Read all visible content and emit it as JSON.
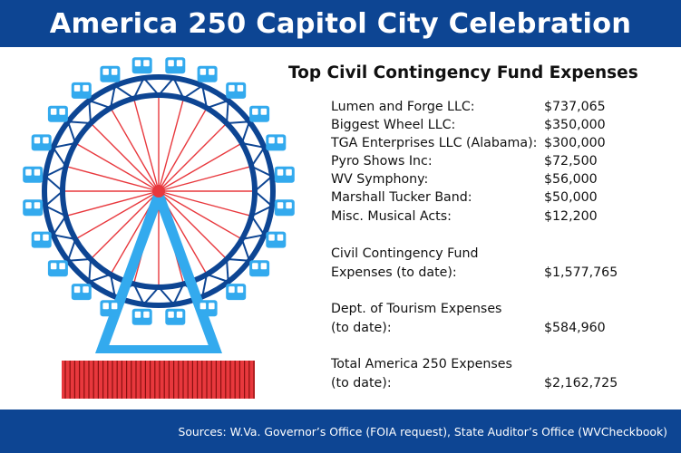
{
  "header": {
    "title": "America 250 Capitol City Celebration"
  },
  "table": {
    "heading": "Top Civil Contingency Fund Expenses",
    "items": [
      {
        "label": "Lumen and Forge LLC:",
        "amount": "$737,065"
      },
      {
        "label": "Biggest Wheel LLC:",
        "amount": "$350,000"
      },
      {
        "label": "TGA Enterprises LLC (Alabama):",
        "amount": "$300,000"
      },
      {
        "label": "Pyro Shows Inc:",
        "amount": "$72,500"
      },
      {
        "label": "WV Symphony:",
        "amount": "$56,000"
      },
      {
        "label": "Marshall Tucker Band:",
        "amount": "$50,000"
      },
      {
        "label": "Misc. Musical Acts:",
        "amount": "$12,200"
      }
    ],
    "totals": [
      {
        "line1": "Civil Contingency Fund",
        "line2": "Expenses (to date):",
        "amount": "$1,577,765"
      },
      {
        "line1": "Dept. of Tourism Expenses",
        "line2": "(to date):",
        "amount": "$584,960"
      },
      {
        "line1": "Total America 250 Expenses",
        "line2": "(to date):",
        "amount": "$2,162,725"
      }
    ]
  },
  "footer": {
    "sources": "Sources: W.Va. Governor’s Office (FOIA request), State Auditor’s Office (WVCheckbook)"
  },
  "colors": {
    "banner": "#0d4593",
    "wheel_rim": "#0d4593",
    "spoke": "#e8383d",
    "support": "#33aaee",
    "gondola": "#33aaee",
    "base": "#e8383d"
  },
  "illustration": {
    "icon": "ferris-wheel-icon",
    "gondola_count": 24,
    "spoke_count": 24
  }
}
